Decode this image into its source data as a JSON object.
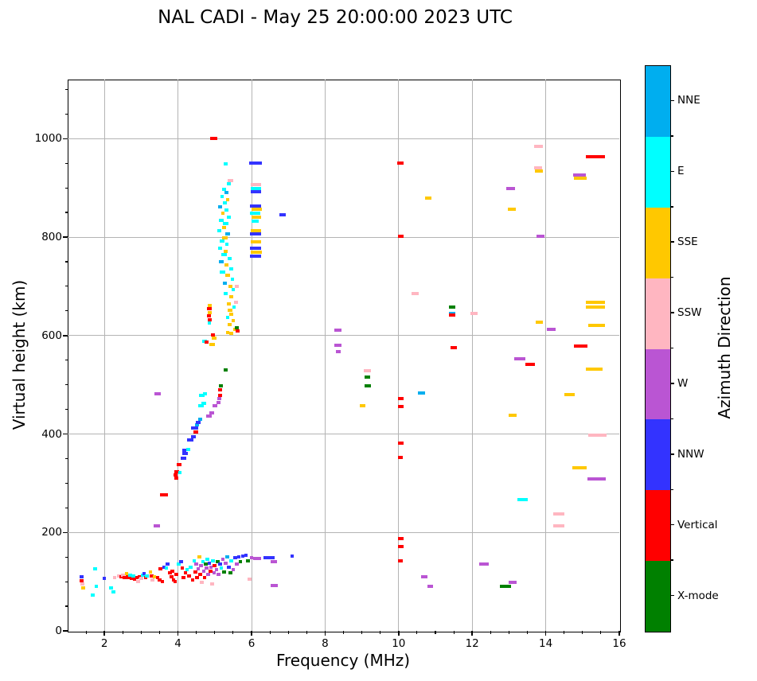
{
  "chart_data": {
    "type": "scatter",
    "title": "NAL CADI - May 25 20:00:00 2023 UTC",
    "xlabel": "Frequency (MHz)",
    "ylabel": "Virtual height (km)",
    "xlim": [
      1,
      16
    ],
    "ylim": [
      0,
      1120
    ],
    "x_major_ticks": [
      2,
      4,
      6,
      8,
      10,
      12,
      14,
      16
    ],
    "y_major_ticks": [
      0,
      200,
      400,
      600,
      800,
      1000
    ],
    "x_minor_step": 0.5,
    "y_minor_step": 50,
    "grid": true,
    "legend_position": "right-colorbar",
    "colorbar": {
      "label": "Azimuth Direction",
      "categories": [
        {
          "label": "NNE",
          "color": "#00AEEF"
        },
        {
          "label": "E",
          "color": "#00FFFF"
        },
        {
          "label": "SSE",
          "color": "#FFC800"
        },
        {
          "label": "SSW",
          "color": "#FFB6C1"
        },
        {
          "label": "W",
          "color": "#BA55D3"
        },
        {
          "label": "NNW",
          "color": "#3333FF"
        },
        {
          "label": "Vertical",
          "color": "#FF0000"
        },
        {
          "label": "X-mode",
          "color": "#008000"
        }
      ]
    },
    "point_units": "[frequency_MHz, virtual_height_km, azimuth_direction, dash_width_MHz(optional)]",
    "points": [
      [
        4.97,
        1000,
        "Vertical",
        0.18
      ],
      [
        5.3,
        948,
        "E",
        0.12
      ],
      [
        6.1,
        950,
        "NNW",
        0.35
      ],
      [
        6.12,
        906,
        "SSW",
        0.3
      ],
      [
        6.12,
        899,
        "E",
        0.3
      ],
      [
        6.12,
        892,
        "NNW",
        0.3
      ],
      [
        6.1,
        863,
        "NNW",
        0.3
      ],
      [
        6.14,
        856,
        "SSE",
        0.3
      ],
      [
        6.1,
        848,
        "E",
        0.28
      ],
      [
        6.13,
        840,
        "SSE",
        0.25
      ],
      [
        6.1,
        832,
        "E",
        0.2
      ],
      [
        6.85,
        845,
        "NNW",
        0.18
      ],
      [
        6.12,
        813,
        "SSE",
        0.3
      ],
      [
        6.1,
        806,
        "NNW",
        0.3
      ],
      [
        6.12,
        790,
        "SSE",
        0.28
      ],
      [
        6.1,
        778,
        "NNW",
        0.3
      ],
      [
        6.13,
        770,
        "SSE",
        0.3
      ],
      [
        6.1,
        762,
        "NNW",
        0.3
      ],
      [
        5.42,
        915,
        "SSW",
        0.15
      ],
      [
        5.38,
        908,
        "E",
        0.1
      ],
      [
        5.25,
        897,
        "E",
        0.1
      ],
      [
        5.32,
        890,
        "NNE",
        0.1
      ],
      [
        5.2,
        883,
        "E",
        0.1
      ],
      [
        5.35,
        876,
        "SSE",
        0.1
      ],
      [
        5.28,
        869,
        "E",
        0.12
      ],
      [
        5.15,
        862,
        "NNE",
        0.1
      ],
      [
        5.32,
        855,
        "E",
        0.12
      ],
      [
        5.22,
        848,
        "SSE",
        0.1
      ],
      [
        5.38,
        841,
        "E",
        0.1
      ],
      [
        5.18,
        834,
        "E",
        0.12
      ],
      [
        5.3,
        827,
        "E",
        0.15
      ],
      [
        5.25,
        820,
        "SSE",
        0.1
      ],
      [
        5.12,
        813,
        "E",
        0.1
      ],
      [
        5.35,
        806,
        "NNE",
        0.12
      ],
      [
        5.28,
        799,
        "SSE",
        0.15
      ],
      [
        5.2,
        792,
        "E",
        0.12
      ],
      [
        5.33,
        785,
        "E",
        0.1
      ],
      [
        5.15,
        778,
        "E",
        0.1
      ],
      [
        5.3,
        771,
        "SSE",
        0.12
      ],
      [
        5.25,
        764,
        "E",
        0.15
      ],
      [
        5.4,
        757,
        "E",
        0.1
      ],
      [
        5.18,
        750,
        "NNE",
        0.12
      ],
      [
        5.32,
        743,
        "SSE",
        0.1
      ],
      [
        5.45,
        736,
        "E",
        0.1
      ],
      [
        5.22,
        729,
        "E",
        0.15
      ],
      [
        5.35,
        722,
        "SSE",
        0.12
      ],
      [
        5.48,
        714,
        "E",
        0.1
      ],
      [
        5.28,
        707,
        "NNE",
        0.12
      ],
      [
        5.42,
        700,
        "SSE",
        0.1
      ],
      [
        5.6,
        700,
        "SSW",
        0.12
      ],
      [
        5.5,
        693,
        "E",
        0.1
      ],
      [
        5.3,
        686,
        "E",
        0.12
      ],
      [
        5.45,
        679,
        "SSE",
        0.12
      ],
      [
        5.58,
        668,
        "SSW",
        0.12
      ],
      [
        5.38,
        665,
        "SSE",
        0.12
      ],
      [
        5.52,
        658,
        "E",
        0.1
      ],
      [
        5.42,
        651,
        "SSE",
        0.12
      ],
      [
        5.45,
        644,
        "SSE",
        0.1
      ],
      [
        5.35,
        637,
        "E",
        0.1
      ],
      [
        5.5,
        630,
        "SSE",
        0.1
      ],
      [
        5.4,
        622,
        "SSE",
        0.12
      ],
      [
        5.55,
        612,
        "SSE",
        0.1
      ],
      [
        5.45,
        605,
        "SSE",
        0.12
      ],
      [
        5.6,
        616,
        "X-mode",
        0.12
      ],
      [
        5.62,
        610,
        "Vertical",
        0.1
      ],
      [
        4.86,
        661,
        "SSE",
        0.12
      ],
      [
        4.85,
        654,
        "Vertical",
        0.12
      ],
      [
        4.87,
        647,
        "SSE",
        0.1
      ],
      [
        4.84,
        640,
        "Vertical",
        0.12
      ],
      [
        4.86,
        632,
        "Vertical",
        0.12
      ],
      [
        4.85,
        625,
        "E",
        0.1
      ],
      [
        4.95,
        601,
        "Vertical",
        0.12
      ],
      [
        4.98,
        595,
        "SSE",
        0.12
      ],
      [
        4.72,
        588,
        "E",
        0.12
      ],
      [
        4.78,
        587,
        "Vertical",
        0.12
      ],
      [
        4.93,
        582,
        "SSE",
        0.15
      ],
      [
        5.35,
        606,
        "SSE",
        0.1
      ],
      [
        5.3,
        530,
        "X-mode",
        0.1
      ],
      [
        3.45,
        482,
        "W",
        0.18
      ],
      [
        3.42,
        214,
        "W",
        0.18
      ],
      [
        3.62,
        276,
        "Vertical",
        0.2
      ],
      [
        3.95,
        310,
        "Vertical",
        0.12
      ],
      [
        3.93,
        317,
        "Vertical",
        0.12
      ],
      [
        3.97,
        324,
        "Vertical",
        0.12
      ],
      [
        4.05,
        322,
        "E",
        0.1
      ],
      [
        4.03,
        337,
        "Vertical",
        0.15
      ],
      [
        4.15,
        350,
        "NNW",
        0.15
      ],
      [
        4.2,
        360,
        "NNW",
        0.15
      ],
      [
        4.17,
        367,
        "NNW",
        0.12
      ],
      [
        4.28,
        368,
        "E",
        0.12
      ],
      [
        4.33,
        388,
        "NNW",
        0.18
      ],
      [
        4.42,
        394,
        "NNW",
        0.15
      ],
      [
        4.48,
        404,
        "Vertical",
        0.12
      ],
      [
        4.45,
        412,
        "NNW",
        0.18
      ],
      [
        4.52,
        418,
        "NNE",
        0.12
      ],
      [
        4.55,
        424,
        "NNW",
        0.12
      ],
      [
        4.6,
        430,
        "NNE",
        0.1
      ],
      [
        4.85,
        437,
        "W",
        0.15
      ],
      [
        4.92,
        443,
        "W",
        0.12
      ],
      [
        4.62,
        457,
        "E",
        0.15
      ],
      [
        4.7,
        463,
        "E",
        0.12
      ],
      [
        5.0,
        457,
        "W",
        0.12
      ],
      [
        5.1,
        464,
        "W",
        0.1
      ],
      [
        5.12,
        472,
        "W",
        0.12
      ],
      [
        4.65,
        478,
        "E",
        0.15
      ],
      [
        4.73,
        481,
        "E",
        0.12
      ],
      [
        5.15,
        478,
        "Vertical",
        0.1
      ],
      [
        5.17,
        497,
        "X-mode",
        0.1
      ],
      [
        5.14,
        490,
        "Vertical",
        0.1
      ],
      [
        1.38,
        110,
        "NNW"
      ],
      [
        1.38,
        102,
        "Vertical"
      ],
      [
        1.4,
        95,
        "SSW"
      ],
      [
        1.42,
        88,
        "SSE"
      ],
      [
        1.68,
        72,
        "E"
      ],
      [
        1.75,
        126,
        "E"
      ],
      [
        1.78,
        90,
        "E"
      ],
      [
        2.0,
        106,
        "NNW"
      ],
      [
        2.18,
        88,
        "E"
      ],
      [
        2.24,
        80,
        "E"
      ],
      [
        2.28,
        109,
        "SSW"
      ],
      [
        2.4,
        112,
        "SSW"
      ],
      [
        2.45,
        110,
        "Vertical"
      ],
      [
        2.5,
        113,
        "SSW"
      ],
      [
        2.55,
        108,
        "Vertical"
      ],
      [
        2.6,
        117,
        "SSE"
      ],
      [
        2.62,
        110,
        "Vertical"
      ],
      [
        2.66,
        108,
        "Vertical"
      ],
      [
        2.7,
        113,
        "E"
      ],
      [
        2.73,
        106,
        "Vertical"
      ],
      [
        2.78,
        111,
        "E"
      ],
      [
        2.82,
        105,
        "Vertical"
      ],
      [
        2.88,
        108,
        "Vertical"
      ],
      [
        2.92,
        100,
        "SSW"
      ],
      [
        2.96,
        110,
        "Vertical"
      ],
      [
        3.0,
        106,
        "SSW"
      ],
      [
        3.05,
        113,
        "E"
      ],
      [
        3.08,
        117,
        "NNW"
      ],
      [
        3.12,
        108,
        "Vertical"
      ],
      [
        3.16,
        112,
        "E"
      ],
      [
        3.25,
        120,
        "SSE"
      ],
      [
        3.28,
        112,
        "Vertical"
      ],
      [
        3.31,
        104,
        "SSW"
      ],
      [
        3.36,
        110,
        "SSE"
      ],
      [
        3.45,
        108,
        "Vertical"
      ],
      [
        3.5,
        104,
        "Vertical"
      ],
      [
        3.52,
        126,
        "Vertical"
      ],
      [
        3.58,
        101,
        "Vertical"
      ],
      [
        3.62,
        130,
        "NNW"
      ],
      [
        3.68,
        127,
        "E"
      ],
      [
        3.72,
        136,
        "NNW"
      ],
      [
        3.78,
        118,
        "Vertical"
      ],
      [
        3.82,
        110,
        "Vertical"
      ],
      [
        3.85,
        122,
        "Vertical"
      ],
      [
        3.88,
        104,
        "Vertical"
      ],
      [
        3.92,
        100,
        "Vertical"
      ],
      [
        3.96,
        115,
        "Vertical"
      ],
      [
        4.02,
        135,
        "E"
      ],
      [
        4.08,
        140,
        "NNW"
      ],
      [
        4.12,
        128,
        "Vertical"
      ],
      [
        4.15,
        108,
        "Vertical"
      ],
      [
        4.2,
        118,
        "Vertical"
      ],
      [
        4.25,
        125,
        "E"
      ],
      [
        4.3,
        112,
        "Vertical"
      ],
      [
        4.35,
        130,
        "E"
      ],
      [
        4.4,
        104,
        "Vertical"
      ],
      [
        4.44,
        142,
        "E"
      ],
      [
        4.48,
        120,
        "Vertical"
      ],
      [
        4.5,
        135,
        "W"
      ],
      [
        4.52,
        108,
        "Vertical"
      ],
      [
        4.55,
        126,
        "W"
      ],
      [
        4.58,
        150,
        "SSE"
      ],
      [
        4.6,
        115,
        "Vertical"
      ],
      [
        4.62,
        132,
        "W"
      ],
      [
        4.65,
        98,
        "SSW"
      ],
      [
        4.68,
        140,
        "E"
      ],
      [
        4.7,
        122,
        "W"
      ],
      [
        4.72,
        108,
        "Vertical"
      ],
      [
        4.75,
        135,
        "X-mode"
      ],
      [
        4.78,
        128,
        "W"
      ],
      [
        4.8,
        145,
        "E"
      ],
      [
        4.82,
        115,
        "W"
      ],
      [
        4.85,
        138,
        "NNW"
      ],
      [
        4.88,
        122,
        "Vertical"
      ],
      [
        4.9,
        130,
        "W"
      ],
      [
        4.93,
        95,
        "SSW"
      ],
      [
        4.95,
        142,
        "E"
      ],
      [
        4.98,
        118,
        "W"
      ],
      [
        5.0,
        132,
        "Vertical"
      ],
      [
        5.05,
        125,
        "W"
      ],
      [
        5.08,
        140,
        "X-mode"
      ],
      [
        5.1,
        115,
        "W"
      ],
      [
        5.15,
        135,
        "NNW"
      ],
      [
        5.18,
        128,
        "E"
      ],
      [
        5.22,
        145,
        "W"
      ],
      [
        5.25,
        120,
        "X-mode"
      ],
      [
        5.3,
        138,
        "W"
      ],
      [
        5.34,
        150,
        "NNE"
      ],
      [
        5.38,
        130,
        "NNW"
      ],
      [
        5.42,
        118,
        "X-mode"
      ],
      [
        5.45,
        142,
        "E"
      ],
      [
        5.5,
        125,
        "W"
      ],
      [
        5.55,
        148,
        "NNW"
      ],
      [
        5.6,
        135,
        "W"
      ],
      [
        5.65,
        150,
        "NNW"
      ],
      [
        5.7,
        140,
        "X-mode"
      ],
      [
        5.76,
        152,
        "NNW"
      ],
      [
        5.85,
        154,
        "NNW"
      ],
      [
        5.9,
        143,
        "X-mode"
      ],
      [
        5.95,
        105,
        "SSW"
      ],
      [
        6.0,
        148,
        "W"
      ],
      [
        6.15,
        147,
        "W",
        0.2
      ],
      [
        6.42,
        149,
        "NNW",
        0.18
      ],
      [
        6.52,
        148,
        "NNW",
        0.22
      ],
      [
        6.6,
        140,
        "W",
        0.18
      ],
      [
        6.62,
        92,
        "W",
        0.18
      ],
      [
        7.1,
        152,
        "NNW",
        0.1
      ],
      [
        8.35,
        611,
        "W",
        0.18
      ],
      [
        8.35,
        581,
        "W",
        0.18
      ],
      [
        8.36,
        567,
        "W",
        0.15
      ],
      [
        9.15,
        529,
        "SSW",
        0.18
      ],
      [
        9.15,
        516,
        "X-mode",
        0.15
      ],
      [
        9.16,
        498,
        "X-mode",
        0.18
      ],
      [
        9.02,
        458,
        "SSE",
        0.15
      ],
      [
        10.05,
        950,
        "Vertical",
        0.18
      ],
      [
        10.05,
        801,
        "Vertical",
        0.15
      ],
      [
        10.05,
        472,
        "Vertical",
        0.15
      ],
      [
        10.05,
        456,
        "Vertical",
        0.15
      ],
      [
        10.05,
        382,
        "Vertical",
        0.15
      ],
      [
        10.05,
        352,
        "Vertical",
        0.12
      ],
      [
        10.05,
        187,
        "Vertical",
        0.15
      ],
      [
        10.05,
        172,
        "Vertical",
        0.15
      ],
      [
        10.05,
        142,
        "Vertical",
        0.12
      ],
      [
        10.45,
        686,
        "SSW",
        0.18
      ],
      [
        10.62,
        484,
        "NNE",
        0.18
      ],
      [
        10.7,
        110,
        "W",
        0.18
      ],
      [
        10.85,
        91,
        "W",
        0.15
      ],
      [
        10.8,
        880,
        "SSE",
        0.18
      ],
      [
        11.45,
        658,
        "X-mode",
        0.18
      ],
      [
        11.45,
        645,
        "NNE",
        0.18
      ],
      [
        11.46,
        641,
        "Vertical",
        0.18
      ],
      [
        11.5,
        576,
        "Vertical",
        0.18
      ],
      [
        12.05,
        645,
        "SSW",
        0.18
      ],
      [
        12.32,
        135,
        "W",
        0.28
      ],
      [
        12.9,
        90,
        "X-mode",
        0.3
      ],
      [
        13.1,
        98,
        "W",
        0.22
      ],
      [
        13.05,
        898,
        "W",
        0.25
      ],
      [
        13.08,
        856,
        "SSE",
        0.22
      ],
      [
        13.1,
        438,
        "SSE",
        0.22
      ],
      [
        13.3,
        553,
        "W",
        0.3
      ],
      [
        13.58,
        542,
        "Vertical",
        0.25
      ],
      [
        13.38,
        266,
        "E",
        0.28
      ],
      [
        13.8,
        985,
        "SSW",
        0.25
      ],
      [
        13.8,
        941,
        "SSW",
        0.22
      ],
      [
        13.82,
        934,
        "SSE",
        0.22
      ],
      [
        13.85,
        802,
        "W",
        0.22
      ],
      [
        13.83,
        627,
        "SSE",
        0.2
      ],
      [
        14.15,
        612,
        "W",
        0.25
      ],
      [
        14.35,
        237,
        "SSW",
        0.3
      ],
      [
        14.35,
        213,
        "SSW",
        0.3
      ],
      [
        14.65,
        480,
        "SSE",
        0.28
      ],
      [
        14.92,
        926,
        "W",
        0.35
      ],
      [
        14.94,
        920,
        "SSE",
        0.35
      ],
      [
        15.35,
        963,
        "Vertical",
        0.5
      ],
      [
        15.35,
        668,
        "SSE",
        0.5
      ],
      [
        15.35,
        658,
        "SSE",
        0.5
      ],
      [
        15.38,
        620,
        "SSE",
        0.45
      ],
      [
        14.95,
        579,
        "Vertical",
        0.35
      ],
      [
        15.32,
        532,
        "SSE",
        0.45
      ],
      [
        15.4,
        397,
        "SSW",
        0.5
      ],
      [
        15.38,
        308,
        "W",
        0.5
      ],
      [
        14.92,
        331,
        "SSE",
        0.38
      ]
    ]
  }
}
